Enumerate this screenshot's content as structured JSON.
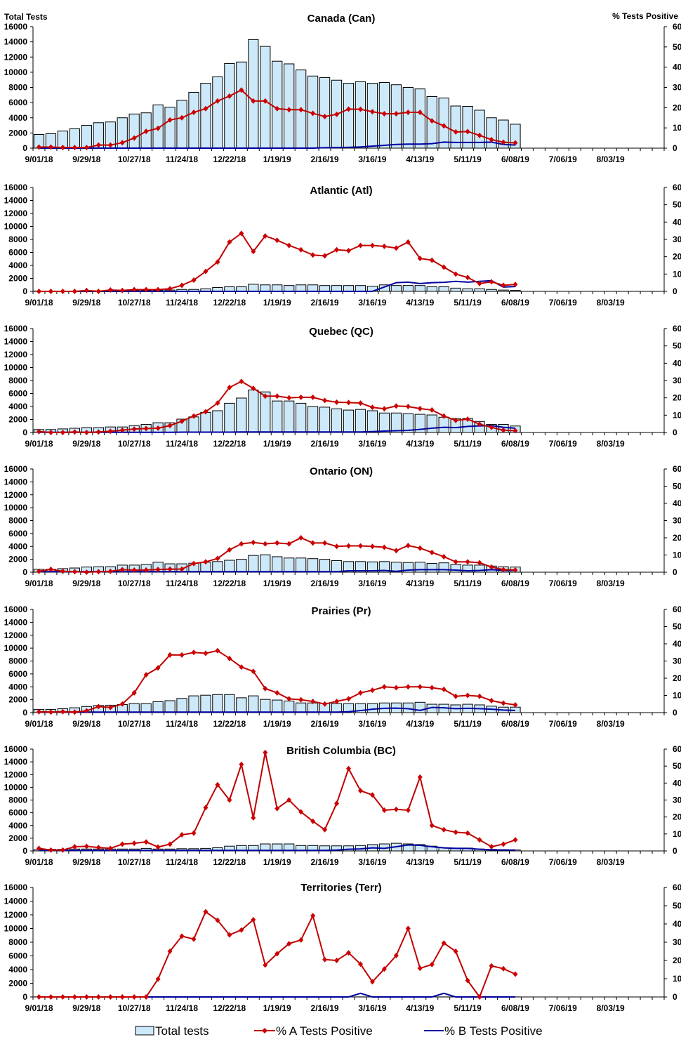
{
  "left_axis_label": "Total Tests",
  "right_axis_label": "% Tests Positive",
  "legend": {
    "total": "Total tests",
    "a": "% A Tests Positive",
    "b": "% B Tests Positive"
  },
  "colors": {
    "bar_fill": "#cde9f9",
    "bar_stroke": "#000000",
    "a_line": "#c00000",
    "a_marker": "#cc0000",
    "b_line": "#0000a0"
  },
  "chart_data": [
    {
      "type": "bar+line",
      "title": "Canada (Can)",
      "x_ticks": [
        "9/01/18",
        "9/29/18",
        "10/27/18",
        "11/24/18",
        "12/22/18",
        "1/19/19",
        "2/16/19",
        "3/16/19",
        "4/13/19",
        "5/11/19",
        "6/08/19",
        "7/06/19",
        "8/03/19"
      ],
      "weeks_per_tick": 4,
      "left_ticks": [
        "0",
        "2000",
        "4000",
        "6000",
        "8000",
        "10000",
        "12000",
        "14000",
        "16000"
      ],
      "right_ticks": [
        "0",
        "10",
        "20",
        "30",
        "40",
        "50",
        "60"
      ],
      "ylim_left": [
        0,
        16000
      ],
      "ylim_right": [
        0,
        60
      ],
      "total_tests": [
        1800,
        1900,
        2250,
        2550,
        3000,
        3350,
        3450,
        4000,
        4500,
        4650,
        5700,
        5400,
        6300,
        7350,
        8550,
        9400,
        11150,
        11350,
        14300,
        13400,
        11450,
        11100,
        10300,
        9500,
        9300,
        8950,
        8550,
        8750,
        8550,
        8650,
        8350,
        8000,
        7800,
        6800,
        6600,
        5550,
        5500,
        5000,
        4000,
        3700,
        3150
      ],
      "pct_a": [
        0.5,
        0.5,
        0.3,
        0.3,
        0.3,
        1.5,
        1.5,
        2.7,
        5,
        8.3,
        9.8,
        13.9,
        15,
        17.7,
        19.5,
        23.3,
        25.7,
        28.7,
        23.3,
        23.3,
        19.5,
        19,
        19,
        17.2,
        15.6,
        16.7,
        19.3,
        19.2,
        18,
        17,
        17,
        17.7,
        17.7,
        13.5,
        11,
        8,
        8.2,
        6.3,
        4.2,
        2.9,
        2.6
      ],
      "pct_b": [
        0,
        0,
        0,
        0,
        0,
        0,
        0,
        0,
        0,
        0,
        0,
        0,
        0,
        0,
        0,
        0,
        0,
        0,
        0,
        0,
        0,
        0,
        0,
        0,
        0.2,
        0.3,
        0.4,
        0.6,
        1,
        1.4,
        1.8,
        2,
        2,
        2.2,
        3,
        2.8,
        2.8,
        2.8,
        3,
        1.8,
        1.5
      ]
    },
    {
      "type": "bar+line",
      "title": "Atlantic (Atl)",
      "x_ticks": [
        "9/01/18",
        "9/29/18",
        "10/27/18",
        "11/24/18",
        "12/22/18",
        "1/19/19",
        "2/16/19",
        "3/16/19",
        "4/13/19",
        "5/11/19",
        "6/08/19",
        "7/06/19",
        "8/03/19"
      ],
      "weeks_per_tick": 4,
      "left_ticks": [
        "0",
        "2000",
        "4000",
        "6000",
        "8000",
        "10000",
        "12000",
        "14000",
        "16000"
      ],
      "right_ticks": [
        "0",
        "10",
        "20",
        "30",
        "40",
        "50",
        "60"
      ],
      "ylim_left": [
        0,
        16000
      ],
      "ylim_right": [
        0,
        60
      ],
      "total_tests": [
        50,
        50,
        50,
        50,
        50,
        80,
        80,
        100,
        100,
        120,
        150,
        200,
        300,
        300,
        400,
        600,
        700,
        700,
        1100,
        1000,
        1000,
        900,
        1000,
        1000,
        900,
        900,
        900,
        900,
        800,
        1000,
        900,
        900,
        900,
        700,
        700,
        500,
        400,
        400,
        300,
        200,
        150
      ],
      "pct_a": [
        0,
        0,
        0,
        0,
        0.5,
        0,
        0.8,
        0.5,
        1,
        1,
        1,
        1.5,
        3.5,
        6.5,
        11.5,
        17,
        28.5,
        33.5,
        23,
        32,
        29.5,
        26.5,
        24,
        21,
        20.5,
        24,
        23.5,
        26.5,
        26.5,
        26,
        25,
        28.5,
        19,
        18,
        14,
        10,
        8,
        4.5,
        5.5,
        3.5,
        4
      ],
      "pct_b": [
        0,
        0,
        0,
        0,
        0,
        0,
        0,
        0,
        0,
        0,
        0,
        0,
        0,
        0,
        0,
        0,
        0,
        0,
        0,
        0,
        0,
        0,
        0,
        0,
        0,
        0,
        0,
        0,
        0,
        2.5,
        5,
        5.3,
        4.5,
        5,
        5.2,
        5.8,
        5.3,
        5.8,
        6.2,
        2.5,
        2.8
      ]
    },
    {
      "type": "bar+line",
      "title": "Quebec (QC)",
      "x_ticks": [
        "9/01/18",
        "9/29/18",
        "10/27/18",
        "11/24/18",
        "12/22/18",
        "1/19/19",
        "2/16/19",
        "3/16/19",
        "4/13/19",
        "5/11/19",
        "6/08/19",
        "7/06/19",
        "8/03/19"
      ],
      "weeks_per_tick": 4,
      "left_ticks": [
        "0",
        "2000",
        "4000",
        "6000",
        "8000",
        "10000",
        "12000",
        "14000",
        "16000"
      ],
      "right_ticks": [
        "0",
        "10",
        "20",
        "30",
        "40",
        "50",
        "60"
      ],
      "ylim_left": [
        0,
        16000
      ],
      "ylim_right": [
        0,
        60
      ],
      "total_tests": [
        450,
        450,
        550,
        650,
        750,
        750,
        850,
        850,
        1050,
        1250,
        1500,
        1500,
        2050,
        2400,
        3100,
        3350,
        4500,
        5300,
        6550,
        6250,
        4850,
        4850,
        4500,
        4000,
        3900,
        3650,
        3450,
        3550,
        3350,
        3000,
        3000,
        2900,
        2800,
        2700,
        2350,
        2150,
        2150,
        1700,
        1250,
        1250,
        1000
      ],
      "pct_a": [
        0.5,
        0,
        0,
        0.3,
        0,
        0.3,
        0.7,
        1.3,
        2,
        2.3,
        2.5,
        4,
        6.5,
        9.5,
        12,
        17,
        26,
        29.5,
        25.5,
        21,
        21,
        20,
        20.3,
        20.3,
        18.5,
        17.5,
        17.3,
        17,
        14.5,
        13.7,
        15.3,
        15,
        13.8,
        13,
        9.5,
        7,
        7.7,
        4.8,
        3,
        1.3,
        1
      ],
      "pct_b": [
        0.1,
        0.1,
        0.1,
        0.1,
        0.1,
        0.1,
        0.1,
        0.1,
        0.1,
        0.1,
        0.1,
        0.1,
        0.2,
        0.2,
        0.2,
        0.2,
        0.2,
        0.3,
        0.3,
        0.3,
        0.3,
        0.3,
        0.3,
        0.3,
        0.3,
        0.3,
        0.3,
        0.3,
        0.5,
        0.8,
        1,
        1.2,
        1.8,
        2.5,
        3,
        2.8,
        3.5,
        3.8,
        4,
        3,
        2.5
      ]
    },
    {
      "type": "bar+line",
      "title": "Ontario (ON)",
      "x_ticks": [
        "9/01/18",
        "9/29/18",
        "10/27/18",
        "11/24/18",
        "12/22/18",
        "1/19/19",
        "2/16/19",
        "3/16/19",
        "4/13/19",
        "5/11/19",
        "6/08/19",
        "7/06/19",
        "8/03/19"
      ],
      "weeks_per_tick": 4,
      "left_ticks": [
        "0",
        "2000",
        "4000",
        "6000",
        "8000",
        "10000",
        "12000",
        "14000",
        "16000"
      ],
      "right_ticks": [
        "0",
        "10",
        "20",
        "30",
        "40",
        "50",
        "60"
      ],
      "ylim_left": [
        0,
        16000
      ],
      "ylim_right": [
        0,
        60
      ],
      "total_tests": [
        450,
        450,
        550,
        650,
        800,
        850,
        850,
        1100,
        1100,
        1200,
        1550,
        1300,
        1300,
        1400,
        1550,
        1650,
        1850,
        2000,
        2600,
        2700,
        2400,
        2200,
        2200,
        2100,
        2000,
        1800,
        1650,
        1650,
        1600,
        1650,
        1550,
        1500,
        1550,
        1350,
        1450,
        1200,
        1100,
        1100,
        950,
        850,
        800
      ],
      "pct_a": [
        0.5,
        1.7,
        0.5,
        0.3,
        0,
        0.3,
        0.5,
        1.5,
        1.2,
        1.3,
        1.6,
        1.8,
        1.8,
        5,
        6,
        8,
        13,
        16.5,
        17.3,
        16.5,
        17,
        16.5,
        20,
        17,
        17,
        15,
        15.3,
        15.3,
        15,
        14.5,
        12.5,
        15.5,
        14,
        11.5,
        9,
        6,
        6,
        5.5,
        3,
        1.5,
        1.3
      ],
      "pct_b": [
        0.3,
        0.3,
        0.3,
        0.3,
        0.3,
        0.3,
        0.3,
        0.3,
        0.3,
        0.3,
        0.3,
        0.3,
        0.3,
        0.3,
        0.3,
        0.3,
        0.3,
        0.3,
        0.3,
        0.3,
        0.3,
        0.3,
        0.3,
        0.3,
        0.3,
        0.3,
        0.8,
        0.8,
        0.8,
        1,
        0.5,
        1.2,
        1.5,
        1.5,
        1.5,
        1.2,
        0.8,
        1,
        1.5,
        1,
        1
      ]
    },
    {
      "type": "bar+line",
      "title": "Prairies (Pr)",
      "x_ticks": [
        "9/01/18",
        "9/29/18",
        "10/27/18",
        "11/24/18",
        "12/22/18",
        "1/19/19",
        "2/16/19",
        "3/16/19",
        "4/13/19",
        "5/11/19",
        "6/08/19",
        "7/06/19",
        "8/03/19"
      ],
      "weeks_per_tick": 4,
      "left_ticks": [
        "0",
        "2000",
        "4000",
        "6000",
        "8000",
        "10000",
        "12000",
        "14000",
        "16000"
      ],
      "right_ticks": [
        "0",
        "10",
        "20",
        "30",
        "40",
        "50",
        "60"
      ],
      "ylim_left": [
        0,
        16000
      ],
      "ylim_right": [
        0,
        60
      ],
      "total_tests": [
        500,
        500,
        600,
        750,
        950,
        1100,
        1150,
        1250,
        1400,
        1400,
        1700,
        1850,
        2200,
        2600,
        2700,
        2800,
        2800,
        2300,
        2600,
        2050,
        1950,
        1800,
        1500,
        1500,
        1450,
        1400,
        1400,
        1400,
        1400,
        1500,
        1500,
        1500,
        1600,
        1300,
        1300,
        1200,
        1300,
        1200,
        1000,
        850,
        850
      ],
      "pct_a": [
        0.5,
        0.3,
        0.5,
        0.3,
        1,
        3.5,
        3,
        5,
        11.5,
        22,
        26,
        33.5,
        33.5,
        35,
        34.5,
        36,
        31.5,
        26.5,
        24,
        14,
        11.5,
        8,
        7.5,
        6.5,
        5,
        6.5,
        8,
        11.5,
        13,
        15,
        14.5,
        15,
        15,
        14.5,
        13.5,
        9.5,
        10,
        9.5,
        7,
        5.5,
        4.5
      ],
      "pct_b": [
        0.3,
        0.3,
        0.3,
        0.3,
        0.3,
        0.3,
        0.3,
        0.3,
        0.3,
        0.3,
        0.3,
        0.3,
        0.3,
        0.3,
        0.3,
        0.3,
        0.3,
        0.3,
        0.3,
        0.3,
        0.3,
        0.3,
        0.3,
        0.3,
        0.3,
        0.3,
        0.5,
        1.2,
        2,
        2.5,
        2.6,
        2.3,
        1.3,
        3,
        2.8,
        2.3,
        2.5,
        2.3,
        2,
        1.5,
        1.3
      ]
    },
    {
      "type": "bar+line",
      "title": "British Columbia (BC)",
      "x_ticks": [
        "9/01/18",
        "9/29/18",
        "10/27/18",
        "11/24/18",
        "12/22/18",
        "1/19/19",
        "2/16/19",
        "3/16/19",
        "4/13/19",
        "5/11/19",
        "6/08/19",
        "7/06/19",
        "8/03/19"
      ],
      "weeks_per_tick": 4,
      "left_ticks": [
        "0",
        "2000",
        "4000",
        "6000",
        "8000",
        "10000",
        "12000",
        "14000",
        "16000"
      ],
      "right_ticks": [
        "0",
        "10",
        "20",
        "30",
        "40",
        "50",
        "60"
      ],
      "ylim_left": [
        0,
        16000
      ],
      "ylim_right": [
        0,
        60
      ],
      "total_tests": [
        200,
        250,
        250,
        300,
        300,
        300,
        300,
        300,
        300,
        400,
        300,
        300,
        350,
        350,
        400,
        500,
        750,
        850,
        850,
        1100,
        1100,
        1100,
        850,
        850,
        800,
        800,
        800,
        850,
        1000,
        1100,
        1200,
        1100,
        1000,
        750,
        500,
        450,
        450,
        300,
        250,
        200,
        150
      ],
      "pct_a": [
        1.5,
        0.5,
        0.5,
        2.5,
        2.7,
        2,
        1.5,
        4,
        4.5,
        5.3,
        2.3,
        4,
        9.5,
        10.5,
        25.5,
        39,
        30,
        51,
        19.5,
        58,
        25,
        30,
        23,
        17.5,
        12.5,
        28,
        48.5,
        35.5,
        33,
        24,
        24.5,
        24,
        43.5,
        15,
        12.5,
        11,
        10.5,
        6.5,
        2.5,
        4,
        6.5
      ],
      "pct_b": [
        0.3,
        0.3,
        0.3,
        0.3,
        0.3,
        0.3,
        0.3,
        0.3,
        0.3,
        0.3,
        0.3,
        0.3,
        0.3,
        0.3,
        0.3,
        0.3,
        0.3,
        0.3,
        0.3,
        0.3,
        0.3,
        0.3,
        0.3,
        0.3,
        0.3,
        0.5,
        1,
        1.2,
        1.8,
        1.5,
        2.5,
        3.5,
        3.3,
        2.5,
        1.8,
        1.5,
        1.5,
        1,
        0.6,
        0.5,
        0.5
      ]
    },
    {
      "type": "bar+line",
      "title": "Territories (Terr)",
      "x_ticks": [
        "9/01/18",
        "9/29/18",
        "10/27/18",
        "11/24/18",
        "12/22/18",
        "1/19/19",
        "2/16/19",
        "3/16/19",
        "4/13/19",
        "5/11/19",
        "6/08/19",
        "7/06/19",
        "8/03/19"
      ],
      "weeks_per_tick": 4,
      "left_ticks": [
        "0",
        "2000",
        "4000",
        "6000",
        "8000",
        "10000",
        "12000",
        "14000",
        "16000"
      ],
      "right_ticks": [
        "0",
        "10",
        "20",
        "30",
        "40",
        "50",
        "60"
      ],
      "ylim_left": [
        0,
        16000
      ],
      "ylim_right": [
        0,
        60
      ],
      "total_tests": [
        10,
        10,
        10,
        10,
        10,
        10,
        10,
        10,
        10,
        10,
        10,
        10,
        10,
        10,
        10,
        10,
        10,
        10,
        10,
        10,
        10,
        10,
        10,
        10,
        10,
        10,
        10,
        10,
        10,
        10,
        10,
        10,
        10,
        10,
        10,
        10,
        10,
        10,
        10,
        10,
        10
      ],
      "pct_a": [
        0,
        0,
        0,
        0,
        0,
        0,
        0,
        0,
        0,
        0,
        9.8,
        25,
        33.3,
        31.7,
        46.7,
        42,
        34,
        36.7,
        42.3,
        17.5,
        23.7,
        29.2,
        31.2,
        44.5,
        20.5,
        20,
        24.2,
        18,
        8.3,
        15.3,
        22.7,
        37.5,
        15.7,
        17.8,
        29.5,
        25,
        9,
        0,
        17,
        15.5,
        12.5
      ],
      "pct_b": [
        0,
        0,
        0,
        0,
        0,
        0,
        0,
        0,
        0,
        0,
        0,
        0,
        0,
        0,
        0,
        0,
        0,
        0,
        0,
        0,
        0,
        0,
        0,
        0,
        0,
        0,
        0,
        2,
        0,
        0,
        0,
        0,
        0,
        0,
        2,
        0,
        0,
        0,
        0,
        0,
        0
      ]
    }
  ]
}
